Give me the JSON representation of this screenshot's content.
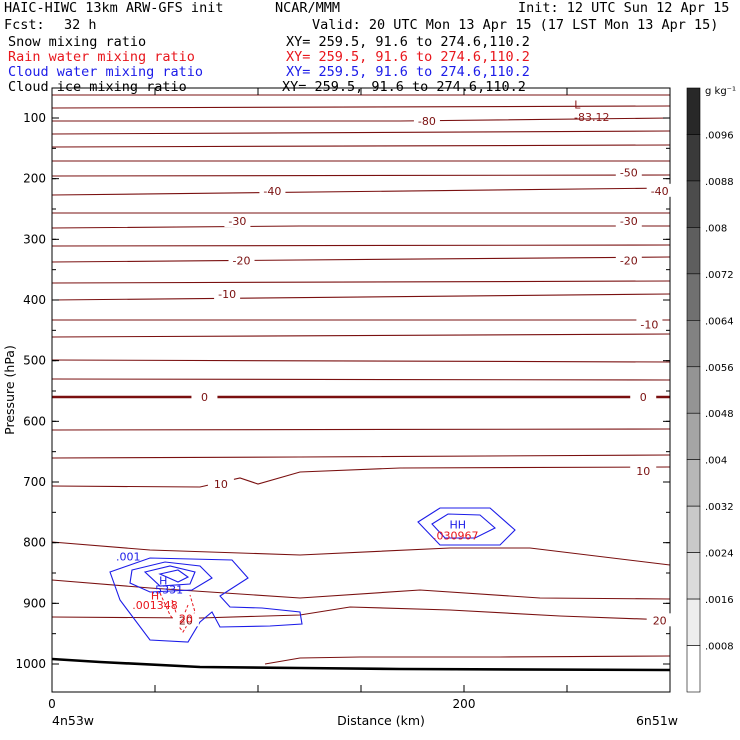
{
  "header": {
    "model_line": "HAIC-HIWC 13km ARW-GFS init",
    "org": "NCAR/MMM",
    "init_line": "Init: 12 UTC Sun 12 Apr 15",
    "fcst_label": "Fcst:",
    "fcst_value": "32 h",
    "valid_line": "Valid: 20 UTC Mon 13 Apr 15 (17 LST Mon 13 Apr 15)"
  },
  "fields": [
    {
      "label": "Snow mixing ratio",
      "xy": "XY= 259.5, 91.6 to 274.6,110.2",
      "color": "#000000"
    },
    {
      "label": "Rain water mixing ratio",
      "xy": "XY= 259.5, 91.6 to 274.6,110.2",
      "color": "#e8161c"
    },
    {
      "label": "Cloud water mixing ratio",
      "xy": "XY= 259.5, 91.6 to 274.6,110.2",
      "color": "#1c1ce8"
    },
    {
      "label": "Cloud ice mixing ratio",
      "xy": "XY= 259.5, 91.6 to 274.6,110.2",
      "color": "#000000"
    }
  ],
  "chart_data": {
    "type": "contour",
    "ylabel": "Pressure (hPa)",
    "xlabel": "Distance (km)",
    "x_ticks": [
      "0",
      "200"
    ],
    "y_ticks": [
      "100",
      "200",
      "300",
      "400",
      "500",
      "600",
      "700",
      "800",
      "900",
      "1000"
    ],
    "xlim": [
      0,
      300
    ],
    "ylim": [
      1050,
      50
    ],
    "x_end_labels": {
      "left": "4n53w",
      "right": "6n51w"
    },
    "colorbar": {
      "unit": "g kg⁻¹",
      "ticks": [
        ".0096",
        ".0088",
        ".008",
        ".0072",
        ".0064",
        ".0056",
        ".0048",
        ".004",
        ".0032",
        ".0024",
        ".0016",
        ".0008"
      ]
    },
    "temperature_contour_labels": [
      {
        "text": "-80",
        "x": 182,
        "p": 105
      },
      {
        "text": "-50",
        "x": 280,
        "p": 190
      },
      {
        "text": "-40",
        "x": 107,
        "p": 220
      },
      {
        "text": "-40",
        "x": 295,
        "p": 220
      },
      {
        "text": "-30",
        "x": 90,
        "p": 270
      },
      {
        "text": "-30",
        "x": 280,
        "p": 270
      },
      {
        "text": "-20",
        "x": 92,
        "p": 335
      },
      {
        "text": "-20",
        "x": 280,
        "p": 335
      },
      {
        "text": "-10",
        "x": 85,
        "p": 390
      },
      {
        "text": "-10",
        "x": 290,
        "p": 440
      },
      {
        "text": "0",
        "x": 74,
        "p": 560
      },
      {
        "text": "0",
        "x": 287,
        "p": 560
      },
      {
        "text": "10",
        "x": 82,
        "p": 703
      },
      {
        "text": "10",
        "x": 287,
        "p": 682
      },
      {
        "text": "20",
        "x": 65,
        "p": 928
      },
      {
        "text": "20",
        "x": 295,
        "p": 928
      }
    ],
    "extrema_labels": [
      {
        "text": "L",
        "x": 255,
        "p": 78,
        "color": "#8b1a1a"
      },
      {
        "text": "-83.12",
        "x": 262,
        "p": 98,
        "color": "#8b1a1a"
      },
      {
        "text": "H",
        "x": 54,
        "p": 862,
        "color": "#1c1ce8"
      },
      {
        "text": ".5331",
        "x": 56,
        "p": 877,
        "color": "#1c1ce8"
      },
      {
        "text": "H",
        "x": 50,
        "p": 887,
        "color": "#e8161c"
      },
      {
        "text": ".001348",
        "x": 50,
        "p": 903,
        "color": "#e8161c"
      },
      {
        "text": "20",
        "x": 65,
        "p": 925,
        "color": "#e8161c"
      },
      {
        "text": "HH",
        "x": 197,
        "p": 770,
        "color": "#1c1ce8"
      },
      {
        "text": ".030967",
        "x": 196,
        "p": 788,
        "color": "#e8161c"
      },
      {
        "text": ".001",
        "x": 37,
        "p": 823,
        "color": "#1c1ce8"
      }
    ]
  }
}
